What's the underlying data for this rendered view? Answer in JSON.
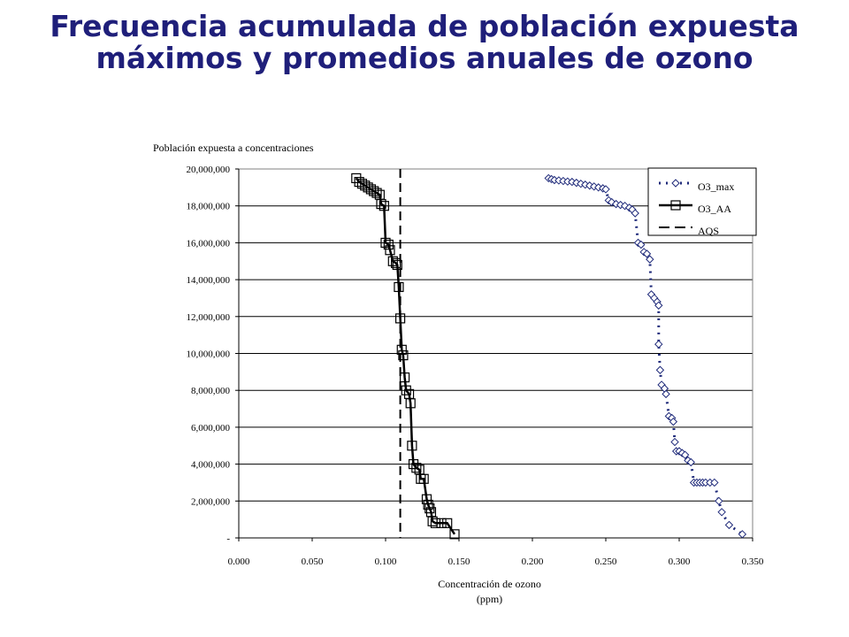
{
  "title": {
    "line1": "Frecuencia acumulada de población expuesta",
    "line2": "máximos y promedios anuales  de ozono"
  },
  "chart_data": {
    "type": "line",
    "title": "Frecuencia acumulada de población expuesta máximos y promedios anuales  de ozono",
    "ylabel": "Población expuesta a concentraciones",
    "xlabel_line1": "Concentración de ozono",
    "xlabel_line2": "(ppm)",
    "xlim": [
      0,
      0.35
    ],
    "ylim": [
      0,
      20000000
    ],
    "x_ticks": [
      "0.000",
      "0.050",
      "0.100",
      "0.150",
      "0.200",
      "0.250",
      "0.300",
      "0.350"
    ],
    "y_ticks": [
      "-",
      "2,000,000",
      "4,000,000",
      "6,000,000",
      "8,000,000",
      "10,000,000",
      "12,000,000",
      "14,000,000",
      "16,000,000",
      "18,000,000",
      "20,000,000"
    ],
    "grid": "horizontal",
    "legend_position": "top-right",
    "series": [
      {
        "name": "O3_max",
        "style": "dotted",
        "marker": "diamond",
        "color": "#1f2a7a",
        "points": [
          [
            0.211,
            19500000
          ],
          [
            0.213,
            19450000
          ],
          [
            0.215,
            19400000
          ],
          [
            0.218,
            19380000
          ],
          [
            0.221,
            19350000
          ],
          [
            0.224,
            19320000
          ],
          [
            0.227,
            19300000
          ],
          [
            0.23,
            19250000
          ],
          [
            0.233,
            19200000
          ],
          [
            0.236,
            19150000
          ],
          [
            0.239,
            19100000
          ],
          [
            0.242,
            19050000
          ],
          [
            0.245,
            19000000
          ],
          [
            0.248,
            18950000
          ],
          [
            0.25,
            18900000
          ],
          [
            0.252,
            18300000
          ],
          [
            0.254,
            18200000
          ],
          [
            0.257,
            18100000
          ],
          [
            0.26,
            18050000
          ],
          [
            0.263,
            18000000
          ],
          [
            0.266,
            17900000
          ],
          [
            0.268,
            17800000
          ],
          [
            0.27,
            17600000
          ],
          [
            0.272,
            16000000
          ],
          [
            0.274,
            15900000
          ],
          [
            0.276,
            15500000
          ],
          [
            0.278,
            15400000
          ],
          [
            0.28,
            15100000
          ],
          [
            0.281,
            13200000
          ],
          [
            0.283,
            13000000
          ],
          [
            0.285,
            12800000
          ],
          [
            0.286,
            12600000
          ],
          [
            0.286,
            10500000
          ],
          [
            0.287,
            9100000
          ],
          [
            0.288,
            8300000
          ],
          [
            0.29,
            8100000
          ],
          [
            0.291,
            7800000
          ],
          [
            0.293,
            6600000
          ],
          [
            0.295,
            6500000
          ],
          [
            0.296,
            6300000
          ],
          [
            0.297,
            5200000
          ],
          [
            0.298,
            4700000
          ],
          [
            0.3,
            4700000
          ],
          [
            0.302,
            4600000
          ],
          [
            0.304,
            4500000
          ],
          [
            0.306,
            4200000
          ],
          [
            0.308,
            4100000
          ],
          [
            0.31,
            3000000
          ],
          [
            0.312,
            3000000
          ],
          [
            0.314,
            3000000
          ],
          [
            0.316,
            3000000
          ],
          [
            0.318,
            3000000
          ],
          [
            0.321,
            3000000
          ],
          [
            0.324,
            3000000
          ],
          [
            0.327,
            2000000
          ],
          [
            0.329,
            1400000
          ],
          [
            0.334,
            700000
          ],
          [
            0.343,
            200000
          ]
        ]
      },
      {
        "name": "O3_AA",
        "style": "solid",
        "marker": "square",
        "color": "#000000",
        "points": [
          [
            0.08,
            19500000
          ],
          [
            0.082,
            19300000
          ],
          [
            0.084,
            19200000
          ],
          [
            0.086,
            19100000
          ],
          [
            0.088,
            19000000
          ],
          [
            0.09,
            18900000
          ],
          [
            0.092,
            18800000
          ],
          [
            0.094,
            18700000
          ],
          [
            0.096,
            18600000
          ],
          [
            0.097,
            18100000
          ],
          [
            0.099,
            18000000
          ],
          [
            0.1,
            16000000
          ],
          [
            0.102,
            15900000
          ],
          [
            0.103,
            15600000
          ],
          [
            0.105,
            15000000
          ],
          [
            0.107,
            14900000
          ],
          [
            0.108,
            14800000
          ],
          [
            0.109,
            13600000
          ],
          [
            0.11,
            11900000
          ],
          [
            0.111,
            10200000
          ],
          [
            0.112,
            9900000
          ],
          [
            0.113,
            8700000
          ],
          [
            0.114,
            8000000
          ],
          [
            0.116,
            7800000
          ],
          [
            0.117,
            7300000
          ],
          [
            0.118,
            5000000
          ],
          [
            0.119,
            4000000
          ],
          [
            0.121,
            3800000
          ],
          [
            0.123,
            3700000
          ],
          [
            0.124,
            3200000
          ],
          [
            0.126,
            3200000
          ],
          [
            0.128,
            2100000
          ],
          [
            0.129,
            1800000
          ],
          [
            0.13,
            1600000
          ],
          [
            0.131,
            1400000
          ],
          [
            0.132,
            900000
          ],
          [
            0.134,
            800000
          ],
          [
            0.138,
            800000
          ],
          [
            0.142,
            800000
          ],
          [
            0.147,
            200000
          ]
        ]
      },
      {
        "name": "AQS",
        "style": "dashed",
        "color": "#000000",
        "x": 0.11
      }
    ]
  }
}
